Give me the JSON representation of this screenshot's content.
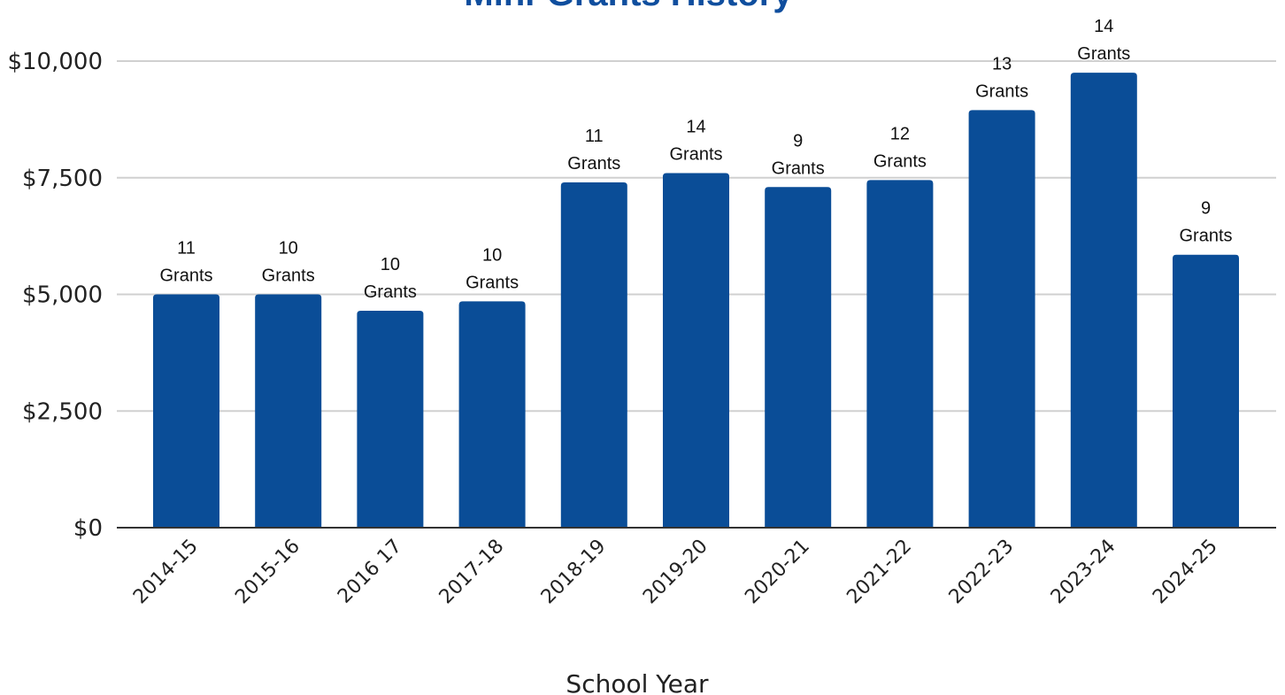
{
  "chart_data": {
    "type": "bar",
    "title": "Mini-Grants History",
    "xlabel": "School Year",
    "ylabel": "",
    "categories": [
      "2014-15",
      "2015-16",
      "2016 17",
      "2017-18",
      "2018-19",
      "2019-20",
      "2020-21",
      "2021-22",
      "2022-23",
      "2023-24",
      "2024-25"
    ],
    "values": [
      5000,
      5000,
      4650,
      4850,
      7400,
      7600,
      7300,
      7450,
      8950,
      9750,
      5850
    ],
    "grant_counts": [
      "11",
      "10",
      "10",
      "10",
      "11",
      "14",
      "9",
      "12",
      "13",
      "14",
      "9"
    ],
    "grant_unit": "Grants",
    "ylim": [
      0,
      10000
    ],
    "y_ticks": [
      0,
      2500,
      5000,
      7500,
      10000
    ],
    "y_tick_labels": [
      "$0",
      "$2,500",
      "$5,000",
      "$7,500",
      "$10,000"
    ],
    "grid": true,
    "legend": "none",
    "colors": {
      "bar": "#0a4d97",
      "title": "#0f4e9e",
      "grid": "#d0d0d0",
      "axis": "#333333"
    }
  }
}
